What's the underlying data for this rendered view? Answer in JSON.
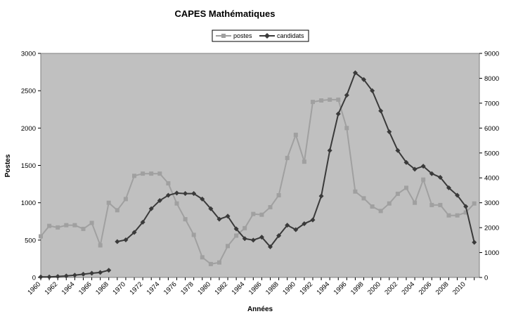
{
  "chart_data": {
    "type": "line",
    "title": "CAPES Mathématiques",
    "xlabel": "Années",
    "ylabel_left": "Postes",
    "ylabel_right": "",
    "ylim_left": [
      0,
      3000
    ],
    "yticks_left": [
      0,
      500,
      1000,
      1500,
      2000,
      2500,
      3000
    ],
    "ylim_right": [
      0,
      9000
    ],
    "yticks_right": [
      0,
      1000,
      2000,
      3000,
      4000,
      5000,
      6000,
      7000,
      8000,
      9000
    ],
    "x_tick_labels": [
      "1960",
      "1962",
      "1964",
      "1966",
      "1968",
      "1970",
      "1972",
      "1974",
      "1976",
      "1978",
      "1980",
      "1982",
      "1984",
      "1986",
      "1988",
      "1990",
      "1992",
      "1994",
      "1996",
      "1998",
      "2000",
      "2002",
      "2004",
      "2006",
      "2008",
      "2010"
    ],
    "legend_position": "top-center",
    "plot_background": "#c0c0c0",
    "grid": false,
    "series": [
      {
        "name": "postes",
        "axis": "left",
        "color": "#a0a0a0",
        "marker": "square",
        "points": [
          [
            1960,
            550
          ],
          [
            1961,
            690
          ],
          [
            1962,
            670
          ],
          [
            1963,
            700
          ],
          [
            1964,
            700
          ],
          [
            1965,
            650
          ],
          [
            1966,
            730
          ],
          [
            1967,
            430
          ],
          [
            1968,
            1000
          ],
          [
            1969,
            900
          ],
          [
            1970,
            1050
          ],
          [
            1971,
            1360
          ],
          [
            1972,
            1390
          ],
          [
            1973,
            1390
          ],
          [
            1974,
            1390
          ],
          [
            1975,
            1260
          ],
          [
            1976,
            990
          ],
          [
            1977,
            780
          ],
          [
            1978,
            570
          ],
          [
            1979,
            270
          ],
          [
            1980,
            180
          ],
          [
            1981,
            200
          ],
          [
            1982,
            420
          ],
          [
            1983,
            560
          ],
          [
            1984,
            660
          ],
          [
            1985,
            850
          ],
          [
            1986,
            840
          ],
          [
            1987,
            940
          ],
          [
            1988,
            1100
          ],
          [
            1989,
            1600
          ],
          [
            1990,
            1910
          ],
          [
            1991,
            1550
          ],
          [
            1992,
            2350
          ],
          [
            1993,
            2370
          ],
          [
            1994,
            2380
          ],
          [
            1995,
            2380
          ],
          [
            1996,
            2000
          ],
          [
            1997,
            1150
          ],
          [
            1998,
            1060
          ],
          [
            1999,
            950
          ],
          [
            2000,
            890
          ],
          [
            2001,
            990
          ],
          [
            2002,
            1120
          ],
          [
            2003,
            1200
          ],
          [
            2004,
            1000
          ],
          [
            2005,
            1310
          ],
          [
            2006,
            970
          ],
          [
            2007,
            970
          ],
          [
            2008,
            830
          ],
          [
            2009,
            830
          ],
          [
            2010,
            870
          ],
          [
            2011,
            990
          ]
        ]
      },
      {
        "name": "candidats",
        "axis": "right",
        "color": "#3a3a3a",
        "marker": "diamond",
        "segments": [
          [
            [
              1960,
              20
            ],
            [
              1961,
              20
            ],
            [
              1962,
              40
            ],
            [
              1963,
              60
            ],
            [
              1964,
              90
            ],
            [
              1965,
              130
            ],
            [
              1966,
              170
            ],
            [
              1967,
              200
            ],
            [
              1968,
              290
            ]
          ],
          [
            [
              1969,
              1440
            ],
            [
              1970,
              1510
            ],
            [
              1971,
              1810
            ],
            [
              1972,
              2220
            ],
            [
              1973,
              2760
            ],
            [
              1974,
              3090
            ],
            [
              1975,
              3300
            ],
            [
              1976,
              3390
            ],
            [
              1977,
              3370
            ],
            [
              1978,
              3370
            ],
            [
              1979,
              3150
            ],
            [
              1980,
              2760
            ],
            [
              1981,
              2340
            ],
            [
              1982,
              2460
            ],
            [
              1983,
              1950
            ],
            [
              1984,
              1560
            ],
            [
              1985,
              1500
            ],
            [
              1986,
              1620
            ],
            [
              1987,
              1230
            ],
            [
              1988,
              1680
            ],
            [
              1989,
              2100
            ],
            [
              1990,
              1920
            ],
            [
              1991,
              2160
            ],
            [
              1992,
              2310
            ],
            [
              1993,
              3270
            ],
            [
              1994,
              5100
            ],
            [
              1995,
              6570
            ],
            [
              1996,
              7320
            ],
            [
              1997,
              8220
            ],
            [
              1998,
              7950
            ],
            [
              1999,
              7500
            ],
            [
              2000,
              6690
            ],
            [
              2001,
              5850
            ],
            [
              2002,
              5100
            ],
            [
              2003,
              4620
            ],
            [
              2004,
              4350
            ],
            [
              2005,
              4470
            ],
            [
              2006,
              4170
            ],
            [
              2007,
              4020
            ],
            [
              2008,
              3600
            ],
            [
              2009,
              3300
            ],
            [
              2010,
              2850
            ],
            [
              2011,
              1410
            ]
          ]
        ]
      }
    ]
  }
}
